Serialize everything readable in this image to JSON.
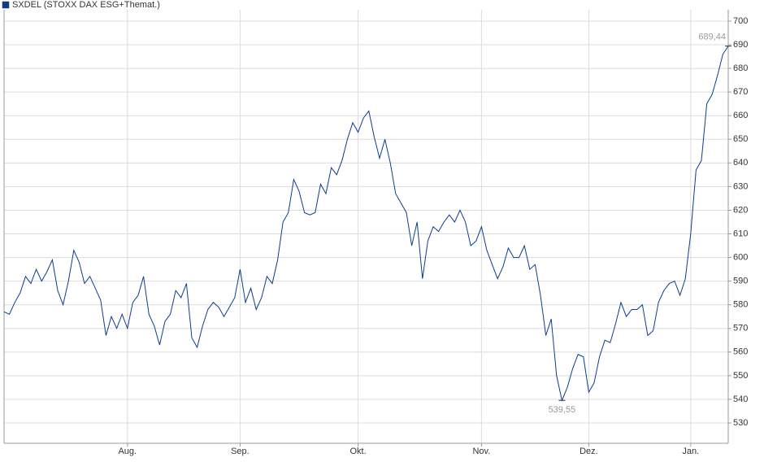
{
  "chart_data": {
    "type": "line",
    "categories": [
      null,
      null,
      null,
      null,
      null,
      null,
      null,
      null,
      null,
      null,
      null,
      null,
      null,
      null,
      null,
      null,
      null,
      null,
      null,
      null,
      null,
      null,
      null,
      "Aug.",
      null,
      null,
      null,
      null,
      null,
      null,
      null,
      null,
      null,
      null,
      null,
      null,
      null,
      null,
      null,
      null,
      null,
      null,
      null,
      null,
      "Sep.",
      null,
      null,
      null,
      null,
      null,
      null,
      null,
      null,
      null,
      null,
      null,
      null,
      null,
      null,
      null,
      null,
      null,
      null,
      null,
      null,
      null,
      "Okt.",
      null,
      null,
      null,
      null,
      null,
      null,
      null,
      null,
      null,
      null,
      null,
      null,
      null,
      null,
      null,
      null,
      null,
      null,
      null,
      null,
      null,
      null,
      "Nov.",
      null,
      null,
      null,
      null,
      null,
      null,
      null,
      null,
      null,
      null,
      null,
      null,
      null,
      null,
      null,
      null,
      null,
      null,
      null,
      "Dez.",
      null,
      null,
      null,
      null,
      null,
      null,
      null,
      null,
      null,
      null,
      null,
      null,
      null,
      null,
      null,
      null,
      null,
      null,
      "Jan.",
      null,
      null,
      null,
      null,
      null,
      null,
      null
    ],
    "series": [
      {
        "name": "SXDEL (STOXX DAX ESG+Themat.)",
        "color": "#0b3d91",
        "values": [
          577,
          576,
          581,
          585,
          592,
          589,
          595,
          590,
          594,
          599,
          586,
          580,
          590,
          603,
          598,
          589,
          592,
          587,
          582,
          567,
          575,
          570,
          576,
          570,
          581,
          584,
          592,
          576,
          571,
          563,
          573,
          576,
          586,
          583,
          589,
          566,
          562,
          571,
          578,
          581,
          579,
          575,
          579,
          583,
          595,
          581,
          587,
          578,
          583,
          592,
          589,
          599,
          615,
          619,
          633,
          628,
          619,
          618,
          619,
          631,
          627,
          638,
          635,
          641,
          650,
          657,
          653,
          659,
          662,
          651,
          642,
          650,
          640,
          627,
          623,
          619,
          605,
          615,
          591,
          607,
          613,
          611,
          615,
          618,
          615,
          620,
          615,
          605,
          607,
          613,
          603,
          597,
          591,
          596,
          604,
          600,
          600,
          605,
          595,
          597,
          584,
          567,
          574,
          550,
          539.55,
          545,
          553,
          559,
          558,
          543,
          547,
          558,
          565,
          564,
          572,
          581,
          575,
          578,
          578,
          580,
          567,
          569,
          581,
          586,
          589,
          590,
          584,
          591,
          610,
          637,
          641,
          665,
          669,
          677,
          686,
          689.44
        ],
        "value_labels": [
          null,
          null,
          null,
          null,
          null,
          null,
          null,
          null,
          null,
          null,
          null,
          null,
          null,
          null,
          null,
          null,
          null,
          null,
          null,
          null,
          null,
          null,
          null,
          null,
          null,
          null,
          null,
          null,
          null,
          null,
          null,
          null,
          null,
          null,
          null,
          null,
          null,
          null,
          null,
          null,
          null,
          null,
          null,
          null,
          null,
          null,
          null,
          null,
          null,
          null,
          null,
          null,
          null,
          null,
          null,
          null,
          null,
          null,
          null,
          null,
          null,
          null,
          null,
          null,
          null,
          null,
          null,
          null,
          null,
          null,
          null,
          null,
          null,
          null,
          null,
          null,
          null,
          null,
          null,
          null,
          null,
          null,
          null,
          null,
          null,
          null,
          null,
          null,
          null,
          null,
          null,
          null,
          null,
          null,
          null,
          null,
          null,
          null,
          null,
          null,
          null,
          null,
          null,
          null,
          "539,55",
          null,
          null,
          null,
          null,
          null,
          null,
          null,
          null,
          null,
          null,
          null,
          null,
          null,
          null,
          null,
          null,
          null,
          null,
          null,
          null,
          null,
          null,
          null,
          null,
          null,
          null,
          null,
          null,
          null,
          null,
          "689,44"
        ]
      }
    ],
    "ylim": [
      521.4,
      704.8
    ],
    "yticks": [
      530,
      540,
      550,
      560,
      570,
      580,
      590,
      600,
      610,
      620,
      630,
      640,
      650,
      660,
      670,
      680,
      690,
      700
    ],
    "grid": true
  }
}
